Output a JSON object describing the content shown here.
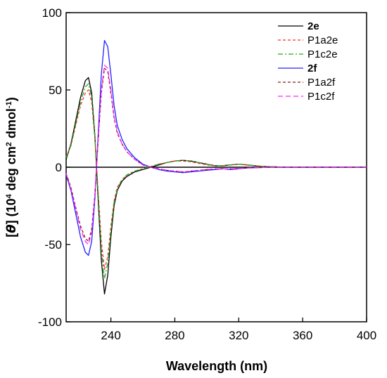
{
  "chart_data": {
    "type": "line",
    "xlabel": "Wavelength (nm)",
    "ylabel": {
      "open": "[",
      "theta": "θ",
      "close": "] (10",
      "exp1": "4",
      "mid": " deg cm",
      "exp2": "2",
      "mid2": " dmol",
      "exp3": "-1",
      "end": ")"
    },
    "xlim": [
      212,
      400
    ],
    "ylim": [
      -100,
      100
    ],
    "x_ticks": [
      "240",
      "280",
      "320",
      "360",
      "400"
    ],
    "x_tick_values": [
      240,
      280,
      320,
      360,
      400
    ],
    "y_ticks": [
      "100",
      "50",
      "0",
      "-50",
      "-100"
    ],
    "y_tick_values": [
      100,
      50,
      0,
      -50,
      -100
    ],
    "grid": false,
    "legend_position": "top-right",
    "series": [
      {
        "name": "2e",
        "color": "#000000",
        "dash": "solid",
        "bold_label": true,
        "x": [
          212,
          215,
          218,
          221,
          224,
          226,
          228,
          230,
          232,
          234,
          236,
          238,
          240,
          242,
          244,
          247,
          250,
          255,
          260,
          265,
          270,
          275,
          280,
          285,
          290,
          295,
          300,
          305,
          310,
          315,
          320,
          325,
          330,
          335,
          340,
          350,
          360,
          380,
          400
        ],
        "y": [
          5,
          15,
          30,
          45,
          56,
          58,
          48,
          20,
          -20,
          -60,
          -82,
          -70,
          -45,
          -25,
          -15,
          -9,
          -6,
          -3,
          -1.5,
          0,
          1.5,
          3,
          4,
          4.5,
          4,
          3,
          2,
          1,
          1,
          1.5,
          2,
          1.5,
          1,
          0.5,
          0.3,
          0,
          0,
          0,
          0
        ]
      },
      {
        "name": "P1a2e",
        "color": "#ff2a2a",
        "dash": "4,3",
        "bold_label": false,
        "x": [
          212,
          215,
          218,
          221,
          224,
          226,
          228,
          230,
          232,
          234,
          236,
          238,
          240,
          242,
          244,
          247,
          250,
          255,
          260,
          265,
          270,
          275,
          280,
          285,
          290,
          295,
          300,
          305,
          310,
          315,
          320,
          325,
          330,
          335,
          340,
          350,
          360,
          380,
          400
        ],
        "y": [
          7,
          14,
          27,
          40,
          48,
          50,
          42,
          18,
          -15,
          -48,
          -66,
          -58,
          -38,
          -22,
          -13,
          -8,
          -5,
          -2.5,
          -1,
          0.5,
          2,
          3,
          4,
          4,
          3.5,
          2.5,
          1.5,
          1,
          1,
          1.5,
          2,
          1.5,
          1,
          0.5,
          0.3,
          0,
          0,
          0,
          0
        ]
      },
      {
        "name": "P1c2e",
        "color": "#22aa22",
        "dash": "7,3,2,3",
        "bold_label": false,
        "x": [
          212,
          215,
          218,
          221,
          224,
          226,
          228,
          230,
          232,
          234,
          236,
          238,
          240,
          242,
          244,
          247,
          250,
          255,
          260,
          265,
          270,
          275,
          280,
          285,
          290,
          295,
          300,
          305,
          310,
          315,
          320,
          325,
          330,
          335,
          340,
          350,
          360,
          380,
          400
        ],
        "y": [
          6,
          14,
          28,
          42,
          52,
          54,
          45,
          19,
          -17,
          -53,
          -72,
          -62,
          -41,
          -23,
          -14,
          -8,
          -5,
          -2.5,
          -1,
          0.5,
          2,
          3,
          4,
          4.5,
          4,
          3,
          2,
          1,
          1,
          1.5,
          2,
          1.5,
          1,
          0.5,
          0.3,
          0,
          0,
          0,
          0
        ]
      },
      {
        "name": "2f",
        "color": "#2222ff",
        "dash": "solid",
        "bold_label": true,
        "x": [
          212,
          215,
          218,
          221,
          224,
          226,
          228,
          230,
          232,
          234,
          236,
          238,
          240,
          242,
          244,
          247,
          250,
          255,
          260,
          265,
          270,
          275,
          280,
          285,
          290,
          295,
          300,
          305,
          310,
          315,
          320,
          325,
          330,
          335,
          340,
          350,
          360,
          380,
          400
        ],
        "y": [
          -5,
          -15,
          -30,
          -45,
          -55,
          -57,
          -48,
          -20,
          20,
          60,
          82,
          78,
          60,
          40,
          27,
          18,
          12,
          6,
          2,
          0,
          -1.5,
          -2.5,
          -3,
          -3.5,
          -3,
          -2.5,
          -2,
          -1.5,
          -1,
          -1.5,
          -1,
          -0.5,
          -0.3,
          -0.2,
          0,
          0,
          0,
          0,
          0
        ]
      },
      {
        "name": "P1a2f",
        "color": "#8b1a1a",
        "dash": "4,3",
        "bold_label": false,
        "x": [
          212,
          215,
          218,
          221,
          224,
          226,
          228,
          230,
          232,
          234,
          236,
          238,
          240,
          242,
          244,
          247,
          250,
          255,
          260,
          265,
          270,
          275,
          280,
          285,
          290,
          295,
          300,
          305,
          310,
          315,
          320,
          325,
          330,
          335,
          340,
          350,
          360,
          380,
          400
        ],
        "y": [
          -4,
          -13,
          -26,
          -38,
          -46,
          -48,
          -40,
          -17,
          16,
          48,
          64,
          62,
          48,
          32,
          22,
          15,
          10,
          5,
          1.5,
          0,
          -1,
          -2,
          -2.5,
          -3,
          -2.5,
          -2,
          -1.5,
          -1,
          -1,
          -1,
          -0.8,
          -0.5,
          -0.3,
          -0.2,
          0,
          0,
          0,
          0,
          0
        ]
      },
      {
        "name": "P1c2f",
        "color": "#ff22ff",
        "dash": "7,4",
        "bold_label": false,
        "x": [
          212,
          215,
          218,
          221,
          224,
          226,
          228,
          230,
          232,
          234,
          236,
          238,
          240,
          242,
          244,
          247,
          250,
          255,
          260,
          265,
          270,
          275,
          280,
          285,
          290,
          295,
          300,
          305,
          310,
          315,
          320,
          325,
          330,
          335,
          340,
          350,
          360,
          380,
          400
        ],
        "y": [
          -4,
          -14,
          -27,
          -40,
          -48,
          -50,
          -42,
          -18,
          17,
          50,
          66,
          64,
          50,
          33,
          23,
          15,
          10,
          5,
          1.5,
          0,
          -1,
          -2,
          -2.5,
          -3,
          -2.5,
          -2,
          -1.5,
          -1,
          -1,
          -1,
          -0.8,
          -0.5,
          -0.3,
          -0.2,
          0,
          0,
          0,
          0,
          0
        ]
      }
    ]
  }
}
